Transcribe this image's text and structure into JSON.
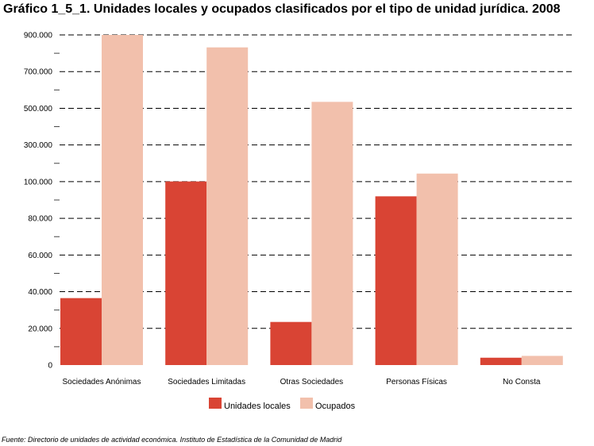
{
  "chart_data": {
    "type": "bar",
    "title": "Gráfico 1_5_1. Unidades locales y ocupados clasificados por el tipo de unidad jurídica. 2008",
    "categories": [
      "Sociedades Anónimas",
      "Sociedades Limitadas",
      "Otras Sociedades",
      "Personas Físicas",
      "No Consta"
    ],
    "series": [
      {
        "name": "Unidades locales",
        "color": "#d94434",
        "values": [
          36500,
          101000,
          23500,
          92000,
          4000
        ]
      },
      {
        "name": "Ocupados",
        "color": "#f2c0ac",
        "values": [
          900000,
          832000,
          535000,
          144000,
          5000
        ]
      }
    ],
    "y_axis": {
      "scale": "broken",
      "tick_values": [
        0,
        20000,
        40000,
        60000,
        80000,
        100000,
        300000,
        500000,
        700000,
        900000
      ],
      "tick_labels": [
        "0",
        "20.000",
        "40.000",
        "60.000",
        "80.000",
        "100.000",
        "300.000",
        "500.000",
        "700.000",
        "900.000"
      ],
      "ylim": [
        0,
        900000
      ]
    },
    "xlabel": "",
    "ylabel": "",
    "grid": true,
    "legend_position": "bottom"
  },
  "source": "Fuente: Directorio de unidades de actividad económica. Instituto de Estadística de la Comunidad de Madrid"
}
